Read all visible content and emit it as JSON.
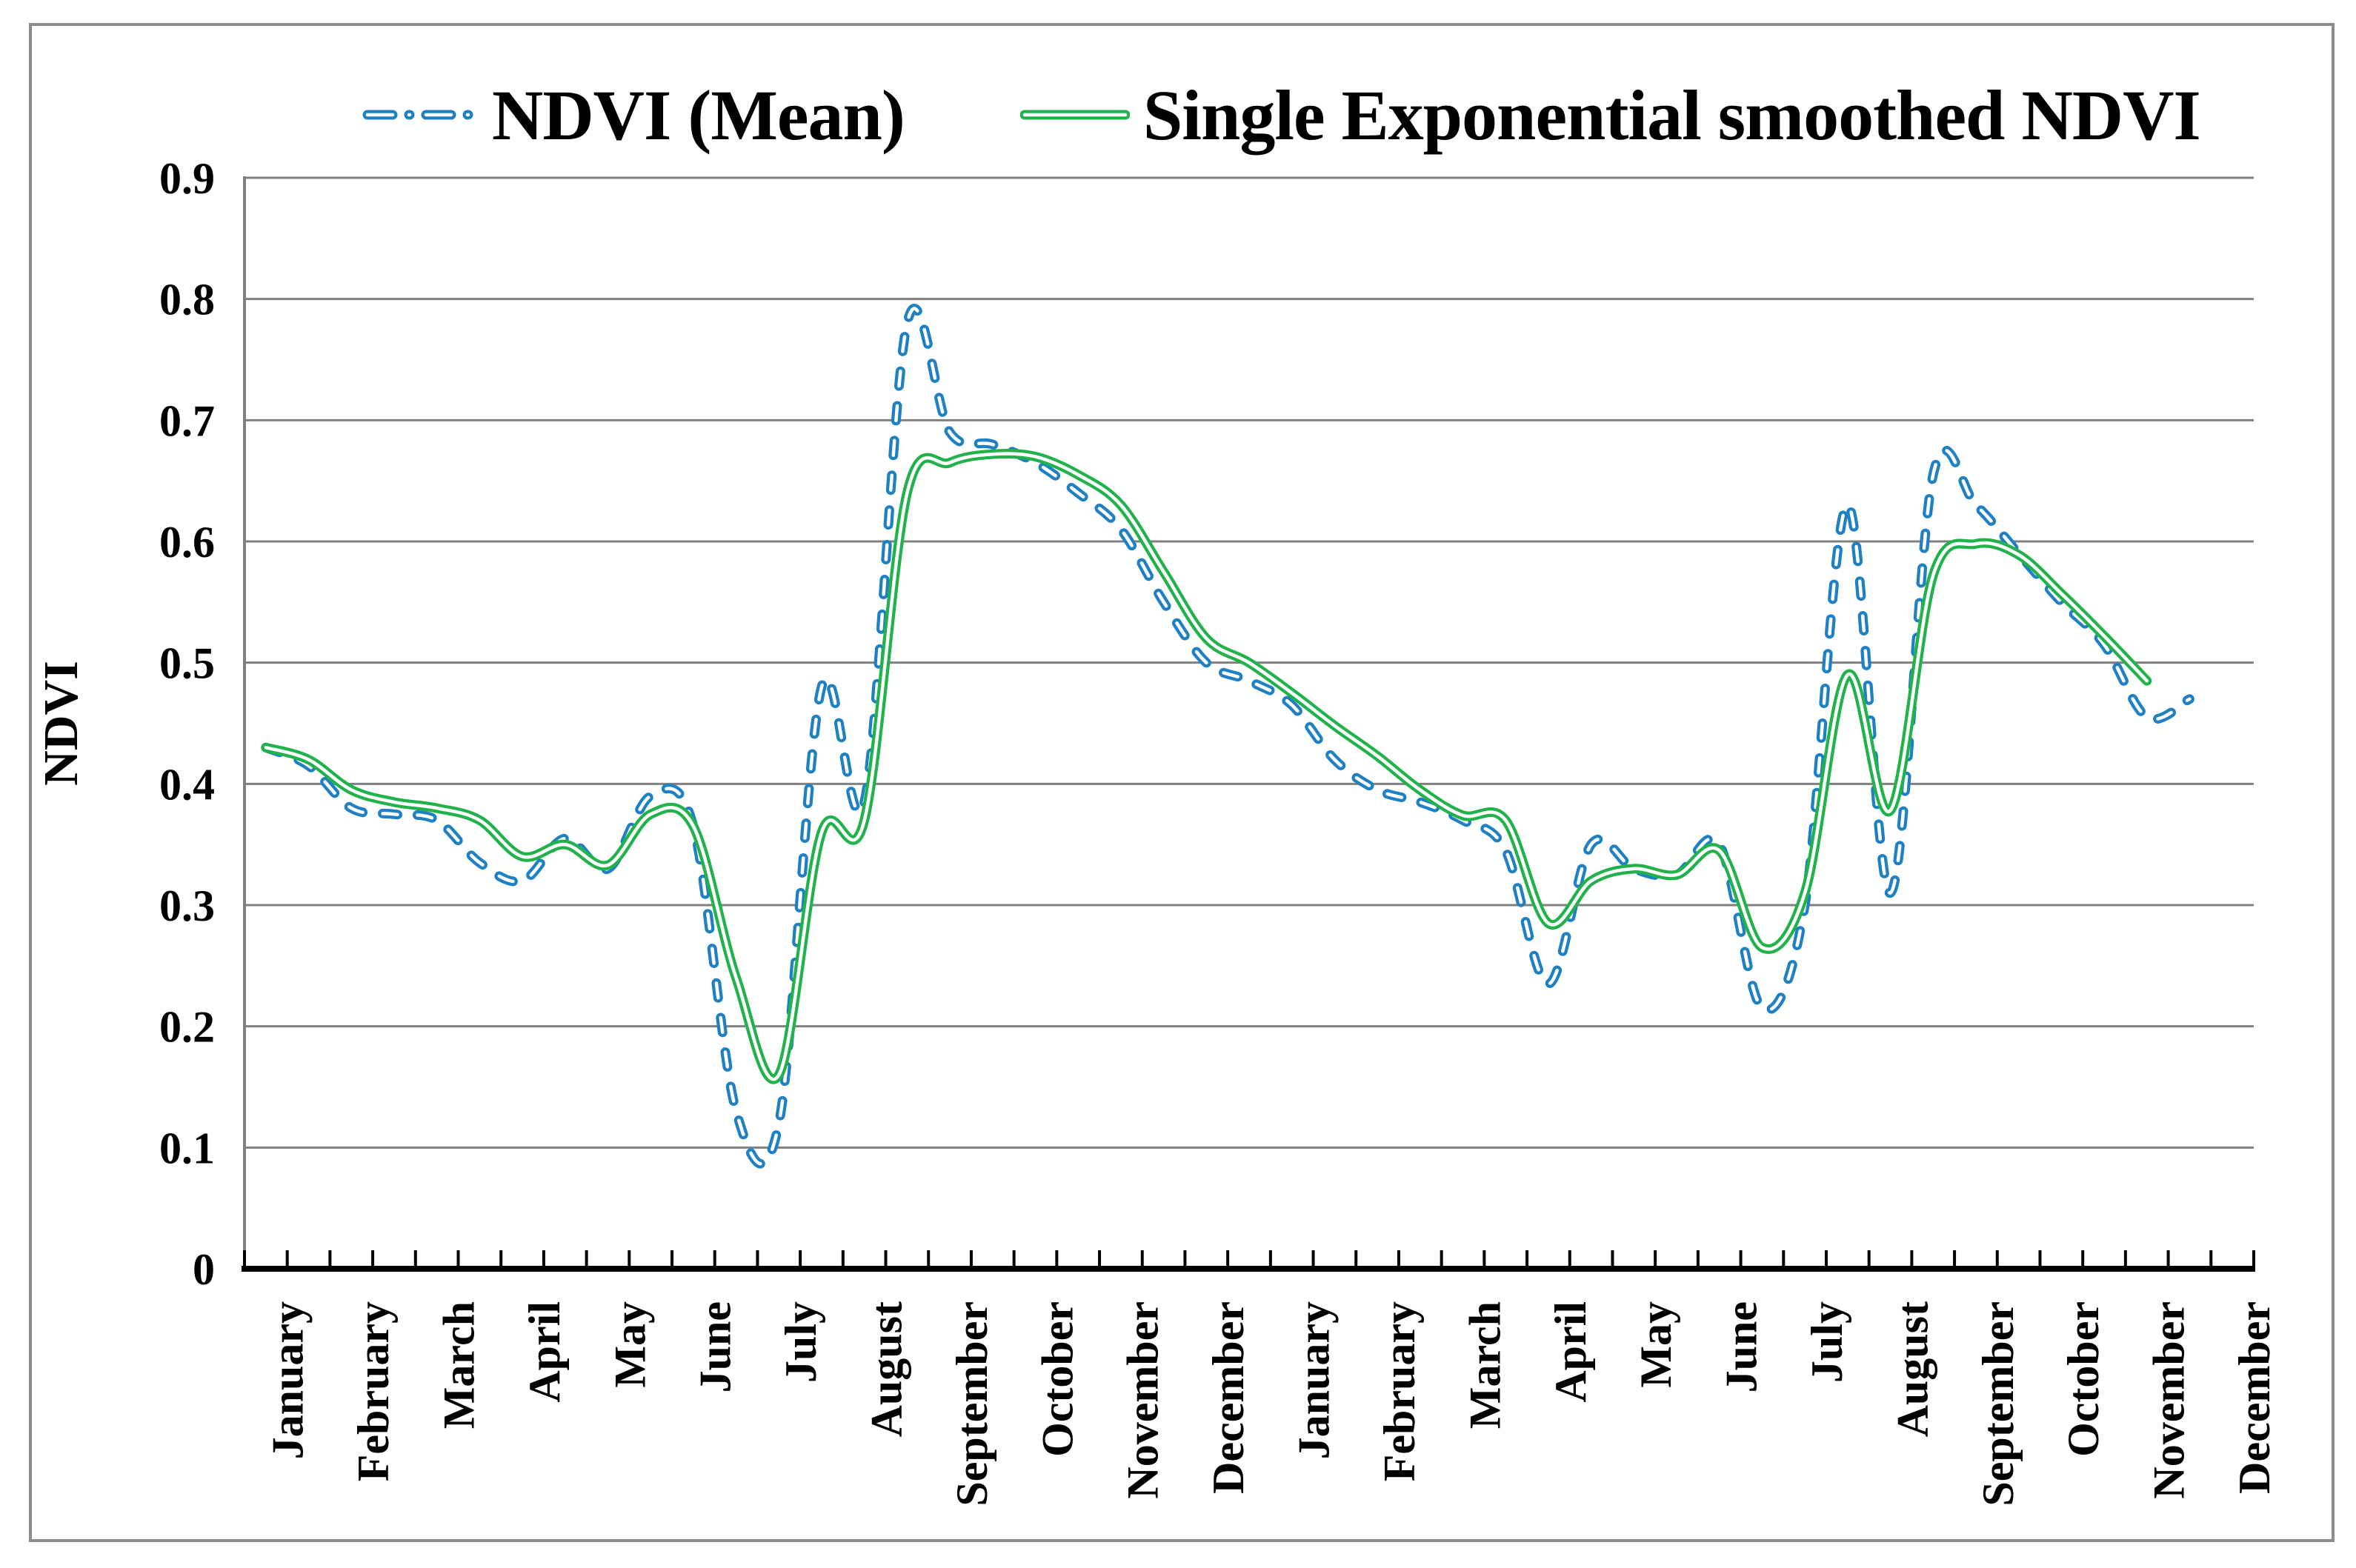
{
  "figure": {
    "background": "#ffffff",
    "border_color": "#8c8c8c"
  },
  "legend": {
    "position": "top-center",
    "items": [
      {
        "label": "NDVI (Mean)",
        "color": "#1f80c4",
        "style": "dashed"
      },
      {
        "label": "Single Exponential smoothed NDVI",
        "color": "#22b24c",
        "style": "solid"
      }
    ]
  },
  "axes": {
    "y_label": "NDVI",
    "y_tick_labels": [
      "0.9",
      "0.8",
      "0.7",
      "0.6",
      "0.5",
      "0.4",
      "0.3",
      "0.2",
      "0.1",
      "0"
    ],
    "x_month_labels": [
      "January",
      "February",
      "March",
      "April",
      "May",
      "June",
      "July",
      "August",
      "September",
      "October",
      "November",
      "December",
      "January",
      "February",
      "March",
      "April",
      "May",
      "June",
      "July",
      "August",
      "September",
      "October",
      "November",
      "December"
    ]
  },
  "chart_data": {
    "type": "line",
    "title": "",
    "xlabel": "",
    "ylabel": "NDVI",
    "ylim": [
      0,
      0.9
    ],
    "y_tick_step": 0.1,
    "grid": "horizontal",
    "legend_position": "top-center",
    "categories": [
      "January",
      "February",
      "March",
      "April",
      "May",
      "June",
      "July",
      "August",
      "September",
      "October",
      "November",
      "December",
      "January",
      "February",
      "March",
      "April",
      "May",
      "June",
      "July",
      "August",
      "September",
      "October",
      "November",
      "December"
    ],
    "points_per_month": 2,
    "note": "values sampled twice per month over two consecutive years; trailing nulls = no data plotted",
    "series": [
      {
        "name": "NDVI (Mean)",
        "color": "#1f80c4",
        "style": "dashed",
        "values": [
          0.43,
          0.415,
          0.38,
          0.375,
          0.37,
          0.335,
          0.32,
          0.355,
          0.33,
          0.39,
          0.365,
          0.13,
          0.12,
          0.48,
          0.385,
          0.78,
          0.69,
          0.68,
          0.665,
          0.64,
          0.61,
          0.55,
          0.5,
          0.485,
          0.465,
          0.42,
          0.395,
          0.385,
          0.37,
          0.345,
          0.235,
          0.35,
          0.33,
          0.325,
          0.35,
          0.215,
          0.3,
          0.63,
          0.31,
          0.655,
          0.63,
          0.59,
          0.55,
          0.515,
          0.455,
          0.47,
          null
        ]
      },
      {
        "name": "Single Exponential smoothed NDVI",
        "color": "#22b24c",
        "style": "solid",
        "values": [
          0.43,
          0.42,
          0.395,
          0.385,
          0.38,
          0.37,
          0.34,
          0.35,
          0.333,
          0.375,
          0.365,
          0.24,
          0.16,
          0.36,
          0.37,
          0.64,
          0.665,
          0.672,
          0.67,
          0.655,
          0.63,
          0.575,
          0.52,
          0.5,
          0.475,
          0.448,
          0.423,
          0.395,
          0.374,
          0.37,
          0.285,
          0.32,
          0.33,
          0.325,
          0.345,
          0.265,
          0.31,
          0.49,
          0.378,
          0.572,
          0.598,
          0.589,
          0.557,
          0.522,
          0.485,
          null,
          null
        ]
      }
    ]
  },
  "colors": {
    "grid": "#808080",
    "x_axis": "#000000",
    "y_axis": "#808080",
    "text": "#000000",
    "line_inner_stripe": "#ffffff"
  }
}
